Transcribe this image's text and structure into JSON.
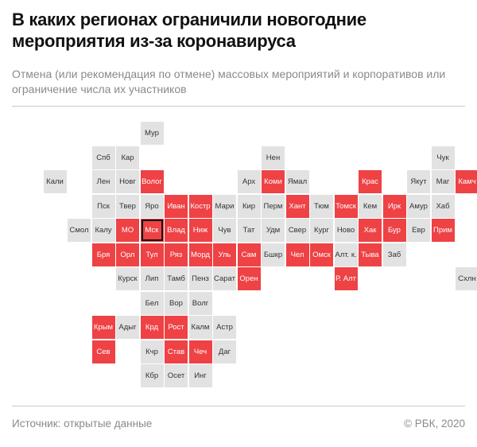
{
  "title": "В каких регионах ограничили новогодние мероприятия из-за коронавируса",
  "subtitle": "Отмена (или рекомендация по отмене) массовых мероприятий и корпоративов или ограничение числа их участников",
  "footer": {
    "source": "Источник:  открытые данные",
    "copyright": "© РБК, 2020"
  },
  "colors": {
    "restricted": "#ee4245",
    "not_restricted": "#e2e2e2",
    "capital_outline": "#111111"
  },
  "regions": [
    {
      "label": "Мур",
      "row": 0,
      "col": 5,
      "restricted": false
    },
    {
      "label": "Нен",
      "row": 1,
      "col": 10,
      "restricted": false
    },
    {
      "label": "Чук",
      "row": 1,
      "col": 17,
      "restricted": false
    },
    {
      "label": "Спб",
      "row": 1,
      "col": 3,
      "restricted": false
    },
    {
      "label": "Кар",
      "row": 1,
      "col": 4,
      "restricted": false
    },
    {
      "label": "Кали",
      "row": 2,
      "col": 1,
      "restricted": false
    },
    {
      "label": "Лен",
      "row": 2,
      "col": 3,
      "restricted": false
    },
    {
      "label": "Новг",
      "row": 2,
      "col": 4,
      "restricted": false
    },
    {
      "label": "Волог",
      "row": 2,
      "col": 5,
      "restricted": true
    },
    {
      "label": "Арх",
      "row": 2,
      "col": 9,
      "restricted": false
    },
    {
      "label": "Коми",
      "row": 2,
      "col": 10,
      "restricted": true
    },
    {
      "label": "Ямал",
      "row": 2,
      "col": 11,
      "restricted": false
    },
    {
      "label": "Крас",
      "row": 2,
      "col": 14,
      "restricted": true
    },
    {
      "label": "Якут",
      "row": 2,
      "col": 16,
      "restricted": false
    },
    {
      "label": "Маг",
      "row": 2,
      "col": 17,
      "restricted": false
    },
    {
      "label": "Камч",
      "row": 2,
      "col": 18,
      "restricted": true
    },
    {
      "label": "Пск",
      "row": 3,
      "col": 3,
      "restricted": false
    },
    {
      "label": "Твер",
      "row": 3,
      "col": 4,
      "restricted": false
    },
    {
      "label": "Яро",
      "row": 3,
      "col": 5,
      "restricted": false
    },
    {
      "label": "Иван",
      "row": 3,
      "col": 6,
      "restricted": true
    },
    {
      "label": "Костр",
      "row": 3,
      "col": 7,
      "restricted": true
    },
    {
      "label": "Мари",
      "row": 3,
      "col": 8,
      "restricted": false
    },
    {
      "label": "Кир",
      "row": 3,
      "col": 9,
      "restricted": false
    },
    {
      "label": "Перм",
      "row": 3,
      "col": 10,
      "restricted": false
    },
    {
      "label": "Хант",
      "row": 3,
      "col": 11,
      "restricted": true
    },
    {
      "label": "Тюм",
      "row": 3,
      "col": 12,
      "restricted": false
    },
    {
      "label": "Томск",
      "row": 3,
      "col": 13,
      "restricted": true
    },
    {
      "label": "Кем",
      "row": 3,
      "col": 14,
      "restricted": false
    },
    {
      "label": "Ирк",
      "row": 3,
      "col": 15,
      "restricted": true
    },
    {
      "label": "Амур",
      "row": 3,
      "col": 16,
      "restricted": false
    },
    {
      "label": "Хаб",
      "row": 3,
      "col": 17,
      "restricted": false
    },
    {
      "label": "Смол",
      "row": 4,
      "col": 2,
      "restricted": false
    },
    {
      "label": "Калу",
      "row": 4,
      "col": 3,
      "restricted": false
    },
    {
      "label": "МО",
      "row": 4,
      "col": 4,
      "restricted": true
    },
    {
      "label": "Мск",
      "row": 4,
      "col": 5,
      "restricted": true,
      "capital": true
    },
    {
      "label": "Влад",
      "row": 4,
      "col": 6,
      "restricted": true
    },
    {
      "label": "Ниж",
      "row": 4,
      "col": 7,
      "restricted": true
    },
    {
      "label": "Чув",
      "row": 4,
      "col": 8,
      "restricted": false
    },
    {
      "label": "Тат",
      "row": 4,
      "col": 9,
      "restricted": false
    },
    {
      "label": "Удм",
      "row": 4,
      "col": 10,
      "restricted": false
    },
    {
      "label": "Свер",
      "row": 4,
      "col": 11,
      "restricted": false
    },
    {
      "label": "Кург",
      "row": 4,
      "col": 12,
      "restricted": false
    },
    {
      "label": "Ново",
      "row": 4,
      "col": 13,
      "restricted": false
    },
    {
      "label": "Хак",
      "row": 4,
      "col": 14,
      "restricted": true
    },
    {
      "label": "Бур",
      "row": 4,
      "col": 15,
      "restricted": true
    },
    {
      "label": "Евр",
      "row": 4,
      "col": 16,
      "restricted": false
    },
    {
      "label": "Прим",
      "row": 4,
      "col": 17,
      "restricted": true
    },
    {
      "label": "Бря",
      "row": 5,
      "col": 3,
      "restricted": true
    },
    {
      "label": "Орл",
      "row": 5,
      "col": 4,
      "restricted": true
    },
    {
      "label": "Тул",
      "row": 5,
      "col": 5,
      "restricted": true
    },
    {
      "label": "Ряз",
      "row": 5,
      "col": 6,
      "restricted": true
    },
    {
      "label": "Морд",
      "row": 5,
      "col": 7,
      "restricted": true
    },
    {
      "label": "Уль",
      "row": 5,
      "col": 8,
      "restricted": true
    },
    {
      "label": "Сам",
      "row": 5,
      "col": 9,
      "restricted": true
    },
    {
      "label": "Бшкр",
      "row": 5,
      "col": 10,
      "restricted": false
    },
    {
      "label": "Чел",
      "row": 5,
      "col": 11,
      "restricted": true
    },
    {
      "label": "Омск",
      "row": 5,
      "col": 12,
      "restricted": true
    },
    {
      "label": "Алт. к.",
      "row": 5,
      "col": 13,
      "restricted": false
    },
    {
      "label": "Тыва",
      "row": 5,
      "col": 14,
      "restricted": true
    },
    {
      "label": "Заб",
      "row": 5,
      "col": 15,
      "restricted": false
    },
    {
      "label": "Курск",
      "row": 6,
      "col": 4,
      "restricted": false
    },
    {
      "label": "Лип",
      "row": 6,
      "col": 5,
      "restricted": false
    },
    {
      "label": "Тамб",
      "row": 6,
      "col": 6,
      "restricted": false
    },
    {
      "label": "Пенз",
      "row": 6,
      "col": 7,
      "restricted": false
    },
    {
      "label": "Сарат",
      "row": 6,
      "col": 8,
      "restricted": false
    },
    {
      "label": "Орен",
      "row": 6,
      "col": 9,
      "restricted": true
    },
    {
      "label": "Р. Алт",
      "row": 6,
      "col": 13,
      "restricted": true
    },
    {
      "label": "Схлн",
      "row": 6,
      "col": 18,
      "restricted": false
    },
    {
      "label": "Бел",
      "row": 7,
      "col": 5,
      "restricted": false
    },
    {
      "label": "Вор",
      "row": 7,
      "col": 6,
      "restricted": false
    },
    {
      "label": "Волг",
      "row": 7,
      "col": 7,
      "restricted": false
    },
    {
      "label": "Крым",
      "row": 8,
      "col": 3,
      "restricted": true
    },
    {
      "label": "Адыг",
      "row": 8,
      "col": 4,
      "restricted": false
    },
    {
      "label": "Крд",
      "row": 8,
      "col": 5,
      "restricted": true
    },
    {
      "label": "Рост",
      "row": 8,
      "col": 6,
      "restricted": true
    },
    {
      "label": "Калм",
      "row": 8,
      "col": 7,
      "restricted": false
    },
    {
      "label": "Астр",
      "row": 8,
      "col": 8,
      "restricted": false
    },
    {
      "label": "Сев",
      "row": 9,
      "col": 3,
      "restricted": true
    },
    {
      "label": "Кчр",
      "row": 9,
      "col": 5,
      "restricted": false
    },
    {
      "label": "Став",
      "row": 9,
      "col": 6,
      "restricted": true
    },
    {
      "label": "Чеч",
      "row": 9,
      "col": 7,
      "restricted": true
    },
    {
      "label": "Даг",
      "row": 9,
      "col": 8,
      "restricted": false
    },
    {
      "label": "Кбр",
      "row": 10,
      "col": 5,
      "restricted": false
    },
    {
      "label": "Осет",
      "row": 10,
      "col": 6,
      "restricted": false
    },
    {
      "label": "Инг",
      "row": 10,
      "col": 7,
      "restricted": false
    }
  ]
}
